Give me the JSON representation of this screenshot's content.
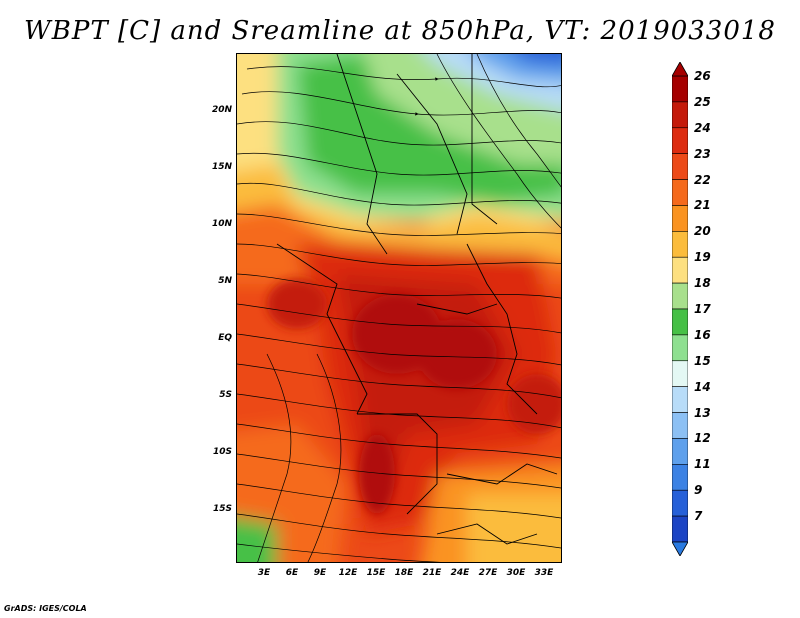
{
  "title": "WBPT [C] and Sreamline at 850hPa, VT: 2019033018",
  "footer": "GrADS: IGES/COLA",
  "axes": {
    "y_ticks": [
      {
        "label": "20N",
        "lat": 20
      },
      {
        "label": "15N",
        "lat": 15
      },
      {
        "label": "10N",
        "lat": 10
      },
      {
        "label": "5N",
        "lat": 5
      },
      {
        "label": "EQ",
        "lat": 0
      },
      {
        "label": "5S",
        "lat": -5
      },
      {
        "label": "10S",
        "lat": -10
      },
      {
        "label": "15S",
        "lat": -15
      }
    ],
    "x_ticks": [
      {
        "label": "3E",
        "lon": 3
      },
      {
        "label": "6E",
        "lon": 6
      },
      {
        "label": "9E",
        "lon": 9
      },
      {
        "label": "12E",
        "lon": 12
      },
      {
        "label": "15E",
        "lon": 15
      },
      {
        "label": "18E",
        "lon": 18
      },
      {
        "label": "21E",
        "lon": 21
      },
      {
        "label": "24E",
        "lon": 24
      },
      {
        "label": "27E",
        "lon": 27
      },
      {
        "label": "30E",
        "lon": 30
      },
      {
        "label": "33E",
        "lon": 33
      }
    ],
    "lon_range": [
      0.5,
      35
    ],
    "lat_range": [
      -20,
      25
    ]
  },
  "colorbar": {
    "labels": [
      "26",
      "25",
      "24",
      "23",
      "22",
      "21",
      "20",
      "19",
      "18",
      "17",
      "16",
      "15",
      "14",
      "13",
      "12",
      "11",
      "9",
      "7"
    ],
    "colors": [
      "#a50000",
      "#c41a0a",
      "#dd2c10",
      "#ec4a18",
      "#f56a1c",
      "#fa9320",
      "#fbbc3c",
      "#fde080",
      "#a8e08c",
      "#46c046",
      "#8ee090",
      "#e4f8f4",
      "#b8dcf8",
      "#8cc0f4",
      "#5ea0ec",
      "#3c82e4",
      "#2660d8",
      "#1c44c4"
    ],
    "top_color": "#a50000",
    "bottom_color": "#2a7ae0"
  }
}
